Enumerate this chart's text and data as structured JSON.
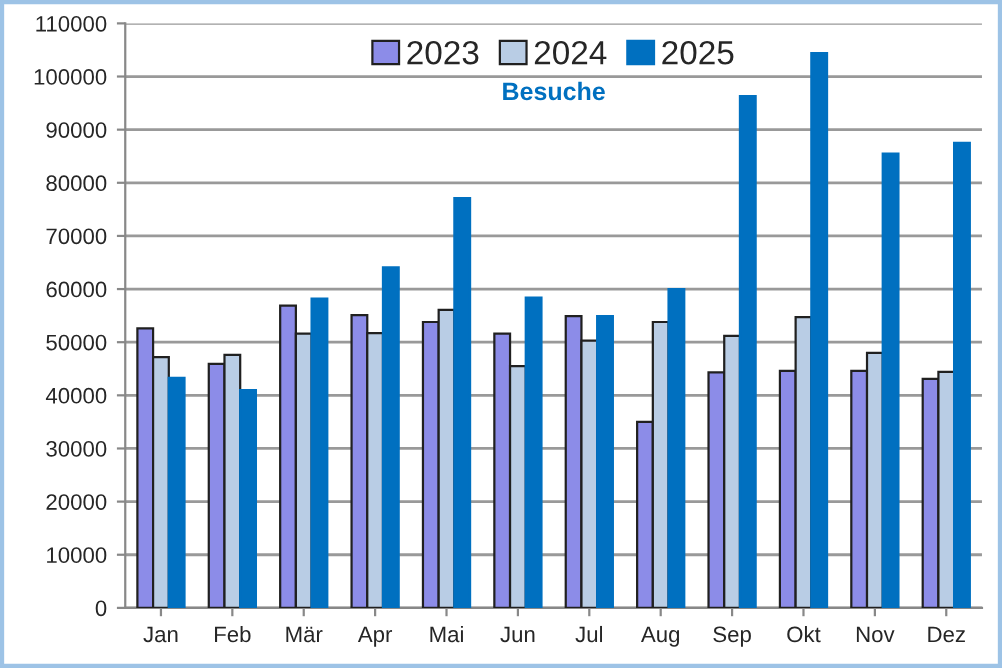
{
  "chart_data": {
    "type": "bar",
    "title": "Besuche",
    "categories": [
      "Jan",
      "Feb",
      "Mär",
      "Apr",
      "Mai",
      "Jun",
      "Jul",
      "Aug",
      "Sep",
      "Okt",
      "Nov",
      "Dez"
    ],
    "series": [
      {
        "name": "2023",
        "color": "#8c8ce8",
        "values": [
          52600,
          45900,
          56900,
          55100,
          53800,
          51600,
          54900,
          35000,
          44300,
          44600,
          44600,
          43100
        ]
      },
      {
        "name": "2024",
        "color": "#b9cde5",
        "values": [
          47200,
          47600,
          51600,
          51700,
          56100,
          45500,
          50300,
          53800,
          51200,
          54700,
          48000,
          44400
        ]
      },
      {
        "name": "2025",
        "color": "#0070c0",
        "values": [
          43300,
          41000,
          58200,
          64100,
          77100,
          58400,
          54900,
          60000,
          96300,
          104400,
          85500,
          87500
        ]
      }
    ],
    "ylim": [
      0,
      110000
    ],
    "yticks": [
      0,
      10000,
      20000,
      30000,
      40000,
      50000,
      60000,
      70000,
      80000,
      90000,
      100000,
      110000
    ],
    "grid": "y",
    "legend": "top"
  }
}
